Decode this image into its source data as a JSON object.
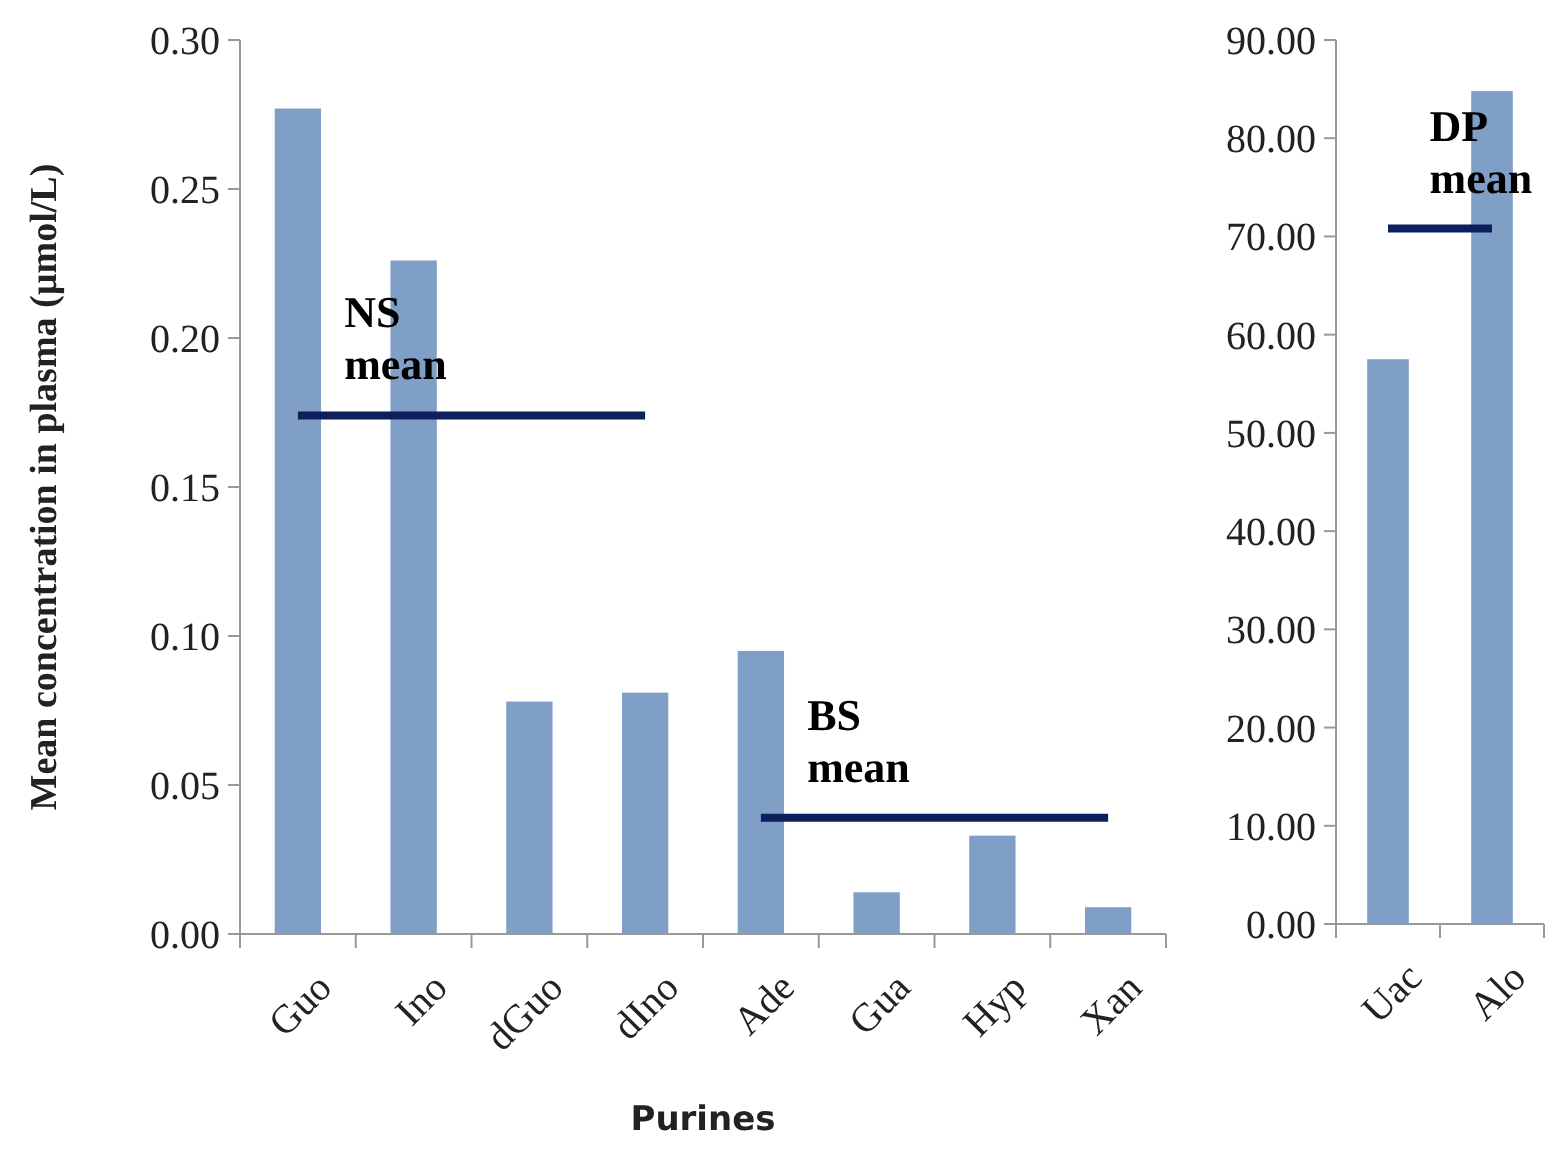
{
  "chart_data": [
    {
      "type": "bar",
      "ylabel": "Mean concentration in plasma (µmol/L)",
      "xlabel": "Purines",
      "categories": [
        "Guo",
        "Ino",
        "dGuo",
        "dIno",
        "Ade",
        "Gua",
        "Hyp",
        "Xan"
      ],
      "series": [
        {
          "color": "#7f9fc6",
          "values": [
            0.277,
            0.226,
            0.078,
            0.081,
            0.095,
            0.014,
            0.033,
            0.009
          ]
        },
        {
          "type": "line",
          "name": "NS mean",
          "color": "#0d1f5c",
          "values": [
            0.174,
            0.174,
            0.174,
            0.174,
            null,
            null,
            null,
            null
          ]
        },
        {
          "type": "line",
          "name": "BS mean",
          "color": "#0d1f5c",
          "values": [
            null,
            null,
            null,
            null,
            0.039,
            0.039,
            0.039,
            0.039
          ]
        }
      ],
      "ylim": [
        0,
        0.3
      ],
      "yticks": [
        {
          "value": 0,
          "label": "0.00"
        },
        {
          "value": 0.05,
          "label": "0.05"
        },
        {
          "value": 0.1,
          "label": "0.10"
        },
        {
          "value": 0.15,
          "label": "0.15"
        },
        {
          "value": 0.2,
          "label": "0.20"
        },
        {
          "value": 0.25,
          "label": "0.25"
        },
        {
          "value": 0.3,
          "label": "0.30"
        }
      ],
      "grid": false
    },
    {
      "type": "bar",
      "categories": [
        "Uac",
        "Alo"
      ],
      "series": [
        {
          "color": "#7f9fc6",
          "values": [
            57.5,
            84.8
          ]
        },
        {
          "type": "line",
          "name": "DP mean",
          "color": "#0d1f5c",
          "values": [
            70.8,
            70.8
          ]
        }
      ],
      "ylim": [
        0,
        90
      ],
      "yticks": [
        {
          "value": 0,
          "label": "0.00"
        },
        {
          "value": 10,
          "label": "10.00"
        },
        {
          "value": 20,
          "label": "20.00"
        },
        {
          "value": 30,
          "label": "30.00"
        },
        {
          "value": 40,
          "label": "40.00"
        },
        {
          "value": 50,
          "label": "50.00"
        },
        {
          "value": 60,
          "label": "60.00"
        },
        {
          "value": 70,
          "label": "70.00"
        },
        {
          "value": 80,
          "label": "80.00"
        },
        {
          "value": 90,
          "label": "90.00"
        }
      ],
      "grid": false
    }
  ]
}
